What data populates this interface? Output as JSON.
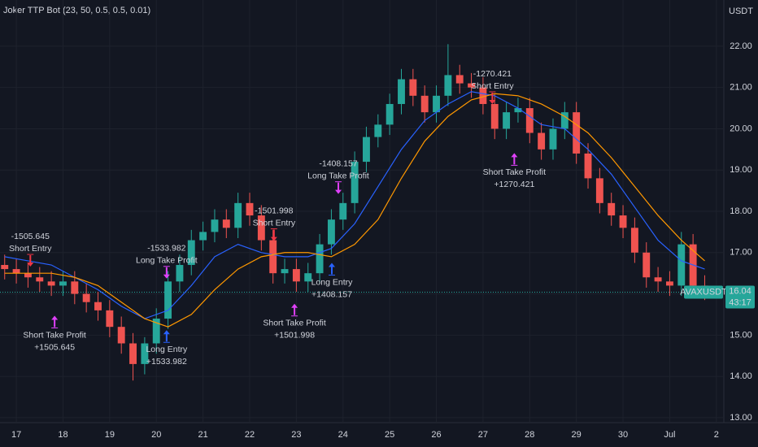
{
  "chart_data": {
    "type": "candlestick",
    "title": "Joker TTP Bot (23, 50, 0.5, 0.5, 0.01)",
    "y_unit": "USDT",
    "symbol": "AVAXUSDT",
    "countdown": "43:17",
    "last_price": 16.04,
    "up_color": "#26a69a",
    "down_color": "#ef5350",
    "grid": true,
    "xlim": [
      16.65,
      32.16
    ],
    "ylim": [
      12.88,
      23.12
    ],
    "xticks": [
      17,
      18,
      19,
      20,
      21,
      22,
      23,
      24,
      25,
      26,
      27,
      28,
      29,
      30,
      {
        "value": 31,
        "label": "Jul"
      },
      {
        "value": 32,
        "label": "2"
      }
    ],
    "yticks": [
      {
        "value": 13,
        "label": "13.00"
      },
      {
        "value": 14,
        "label": "14.00"
      },
      {
        "value": 15,
        "label": "15.00"
      },
      {
        "value": 16,
        "label": "16.00"
      },
      {
        "value": 17,
        "label": "17.00"
      },
      {
        "value": 18,
        "label": "18.00"
      },
      {
        "value": 19,
        "label": "19.00"
      },
      {
        "value": 20,
        "label": "20.00"
      },
      {
        "value": 21,
        "label": "21.00"
      },
      {
        "value": 22,
        "label": "22.00"
      }
    ],
    "x": [
      16.75,
      17,
      17.25,
      17.5,
      17.75,
      18,
      18.25,
      18.5,
      18.75,
      19,
      19.25,
      19.5,
      19.75,
      20,
      20.25,
      20.5,
      20.75,
      21,
      21.25,
      21.5,
      21.75,
      22,
      22.25,
      22.5,
      22.75,
      23,
      23.25,
      23.5,
      23.75,
      24,
      24.25,
      24.5,
      24.75,
      25,
      25.25,
      25.5,
      25.75,
      26,
      26.25,
      26.5,
      26.75,
      27,
      27.25,
      27.5,
      27.75,
      28,
      28.25,
      28.5,
      28.75,
      29,
      29.25,
      29.5,
      29.75,
      30,
      30.25,
      30.5,
      30.75,
      31,
      31.25,
      31.5,
      31.75
    ],
    "open": [
      16.7,
      16.6,
      16.5,
      16.4,
      16.3,
      16.2,
      16.3,
      16.0,
      15.8,
      15.6,
      15.2,
      14.8,
      14.3,
      14.8,
      15.4,
      16.3,
      16.7,
      17.3,
      17.5,
      17.8,
      17.6,
      18.2,
      17.9,
      17.3,
      16.5,
      16.6,
      16.3,
      16.5,
      17.2,
      17.8,
      18.2,
      19.2,
      19.8,
      20.1,
      20.6,
      21.2,
      20.8,
      20.4,
      20.8,
      21.3,
      21.1,
      21.0,
      20.6,
      20.0,
      20.4,
      20.5,
      19.9,
      19.5,
      20.0,
      20.4,
      19.4,
      18.8,
      18.2,
      17.9,
      17.6,
      17.0,
      16.4,
      16.3,
      16.2,
      17.2,
      16.2
    ],
    "high": [
      16.95,
      16.85,
      16.75,
      16.65,
      16.55,
      16.55,
      16.55,
      16.25,
      16.05,
      15.85,
      15.45,
      15.05,
      14.95,
      15.65,
      16.55,
      16.95,
      17.55,
      17.75,
      18.05,
      18.05,
      18.45,
      18.45,
      18.15,
      17.55,
      16.85,
      16.85,
      16.75,
      17.45,
      18.05,
      18.45,
      19.45,
      20.05,
      20.35,
      20.85,
      21.45,
      21.45,
      21.05,
      21.05,
      22.05,
      21.55,
      21.35,
      21.25,
      20.85,
      20.65,
      20.75,
      20.75,
      20.15,
      20.25,
      20.65,
      20.65,
      19.65,
      19.05,
      18.45,
      18.15,
      17.85,
      17.25,
      16.65,
      16.55,
      17.5,
      17.45,
      16.45
    ],
    "low": [
      16.35,
      16.25,
      16.15,
      16.05,
      15.95,
      15.95,
      15.75,
      15.55,
      15.35,
      14.95,
      14.55,
      13.9,
      14.05,
      14.55,
      15.15,
      16.05,
      16.45,
      17.05,
      17.25,
      17.35,
      17.35,
      17.65,
      17.05,
      16.25,
      16.25,
      16.05,
      16.05,
      16.25,
      16.95,
      17.55,
      17.95,
      18.95,
      19.55,
      19.85,
      20.35,
      20.55,
      20.15,
      20.15,
      20.55,
      20.85,
      20.75,
      20.35,
      19.75,
      19.75,
      20.15,
      19.65,
      19.25,
      19.25,
      19.75,
      19.15,
      18.55,
      17.95,
      17.65,
      17.35,
      16.75,
      16.15,
      16.05,
      15.95,
      15.95,
      15.95,
      15.85
    ],
    "close": [
      16.6,
      16.5,
      16.4,
      16.3,
      16.2,
      16.3,
      16.0,
      15.8,
      15.6,
      15.2,
      14.8,
      14.3,
      14.8,
      15.4,
      16.3,
      16.7,
      17.3,
      17.5,
      17.8,
      17.6,
      18.2,
      17.9,
      17.3,
      16.5,
      16.6,
      16.3,
      16.5,
      17.2,
      17.8,
      18.2,
      19.2,
      19.8,
      20.1,
      20.6,
      21.2,
      20.8,
      20.4,
      20.8,
      21.3,
      21.1,
      21.0,
      20.6,
      20.0,
      20.4,
      20.5,
      19.9,
      19.5,
      20.0,
      20.4,
      19.4,
      18.8,
      18.2,
      17.9,
      17.6,
      17.0,
      16.4,
      16.3,
      16.2,
      17.2,
      16.2,
      16.04
    ],
    "lines": [
      {
        "color": "#2962ff",
        "x": [
          16.75,
          17.25,
          17.75,
          18.25,
          18.75,
          19.25,
          19.75,
          20.25,
          20.75,
          21.25,
          21.75,
          22.25,
          22.75,
          23.25,
          23.75,
          24.25,
          24.75,
          25.25,
          25.75,
          26.25,
          26.75,
          27.25,
          27.75,
          28.25,
          28.75,
          29.25,
          29.75,
          30.25,
          30.75,
          31.25,
          31.75
        ],
        "values": [
          16.9,
          16.8,
          16.7,
          16.4,
          16.1,
          15.7,
          15.4,
          15.6,
          16.2,
          16.9,
          17.2,
          17.0,
          16.9,
          16.9,
          17.1,
          17.7,
          18.6,
          19.5,
          20.2,
          20.6,
          20.9,
          20.8,
          20.5,
          20.1,
          20.0,
          19.5,
          18.9,
          18.1,
          17.3,
          16.8,
          16.6
        ]
      },
      {
        "color": "#ff9800",
        "x": [
          16.75,
          17.25,
          17.75,
          18.25,
          18.75,
          19.25,
          19.75,
          20.25,
          20.75,
          21.25,
          21.75,
          22.25,
          22.75,
          23.25,
          23.75,
          24.25,
          24.75,
          25.25,
          25.75,
          26.25,
          26.75,
          27.25,
          27.75,
          28.25,
          28.75,
          29.25,
          29.75,
          30.25,
          30.75,
          31.25,
          31.75
        ],
        "values": [
          16.5,
          16.5,
          16.5,
          16.4,
          16.2,
          15.8,
          15.4,
          15.2,
          15.5,
          16.1,
          16.6,
          16.9,
          17.0,
          17.0,
          16.9,
          17.2,
          17.8,
          18.8,
          19.7,
          20.3,
          20.7,
          20.85,
          20.8,
          20.6,
          20.3,
          19.9,
          19.3,
          18.6,
          17.9,
          17.3,
          16.8
        ]
      }
    ],
    "trades": [
      {
        "x": 17.3,
        "price": 16.66,
        "dir": "down",
        "color": "#f23645",
        "lines": [
          "-1505.645",
          "Short Entry"
        ]
      },
      {
        "x": 17.82,
        "price": 15.47,
        "dir": "up",
        "color": "#e040fb",
        "lines": [
          "Short Take Profit",
          "+1505.645"
        ]
      },
      {
        "x": 20.22,
        "price": 16.37,
        "dir": "down",
        "color": "#e040fb",
        "lines": [
          "-1533.982",
          "Long Take Profit"
        ]
      },
      {
        "x": 20.22,
        "price": 15.12,
        "dir": "up",
        "color": "#2962ff",
        "lines": [
          "Long Entry",
          "+1533.982"
        ]
      },
      {
        "x": 22.52,
        "price": 17.28,
        "dir": "down",
        "color": "#f23645",
        "lines": [
          "-1501.998",
          "Short Entry"
        ]
      },
      {
        "x": 22.96,
        "price": 15.76,
        "dir": "up",
        "color": "#e040fb",
        "lines": [
          "Short Take Profit",
          "+1501.998"
        ]
      },
      {
        "x": 23.76,
        "price": 16.75,
        "dir": "up",
        "color": "#2962ff",
        "lines": [
          "Long Entry",
          "+1408.157"
        ]
      },
      {
        "x": 23.9,
        "price": 18.42,
        "dir": "down",
        "color": "#e040fb",
        "lines": [
          "-1408.157",
          "Long Take Profit"
        ]
      },
      {
        "x": 27.2,
        "price": 20.6,
        "dir": "down",
        "color": "#f23645",
        "lines": [
          "-1270.421",
          "Short Entry"
        ]
      },
      {
        "x": 27.67,
        "price": 19.41,
        "dir": "up",
        "color": "#e040fb",
        "lines": [
          "Short Take Profit",
          "+1270.421"
        ]
      }
    ]
  }
}
